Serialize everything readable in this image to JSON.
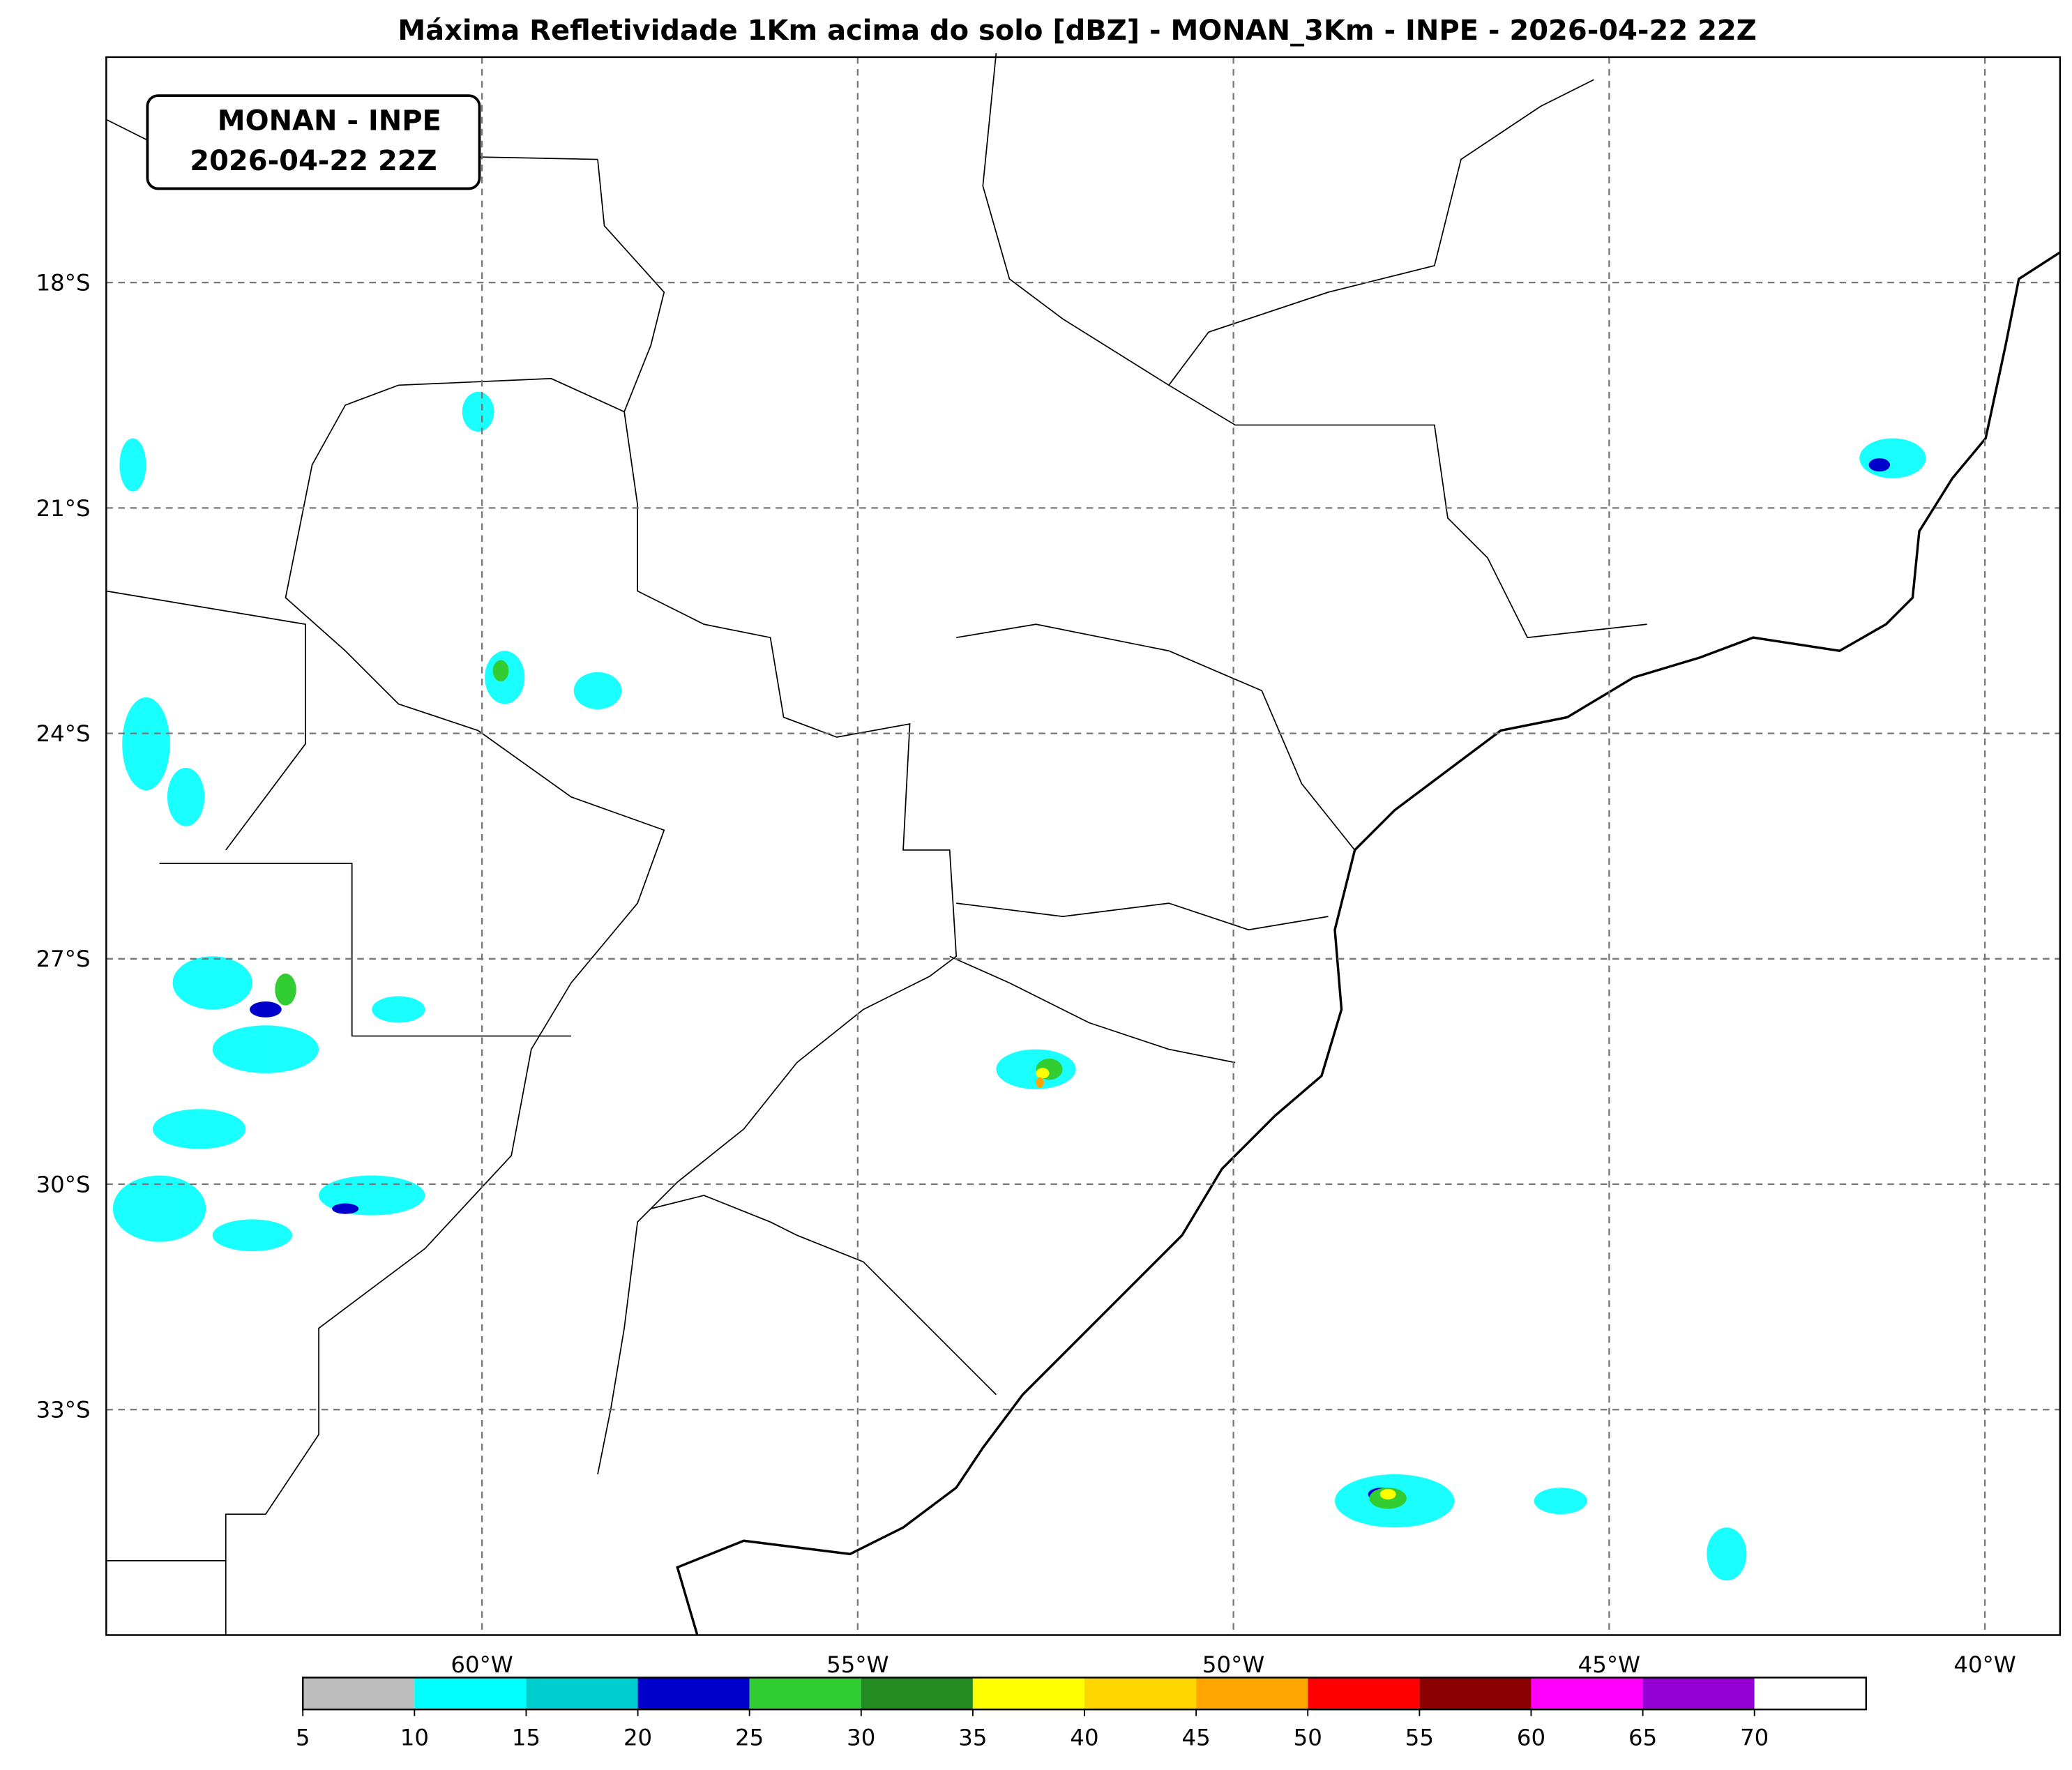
{
  "title": "Máxima Refletividade 1Km acima do solo [dBZ] - MONAN_3Km - INPE - 2026-04-22 22Z",
  "label_box": [
    "MONAN - INPE",
    "2026-04-22 22Z"
  ],
  "map": {
    "lon_range": [
      -65,
      -39
    ],
    "lat_range": [
      -36,
      -15
    ],
    "lon_ticks": [
      {
        "value": -60,
        "label": "60°W"
      },
      {
        "value": -55,
        "label": "55°W"
      },
      {
        "value": -50,
        "label": "50°W"
      },
      {
        "value": -45,
        "label": "45°W"
      },
      {
        "value": -40,
        "label": "40°W"
      }
    ],
    "lat_ticks": [
      {
        "value": -18,
        "label": "18°S"
      },
      {
        "value": -21,
        "label": "21°S"
      },
      {
        "value": -24,
        "label": "24°S"
      },
      {
        "value": -27,
        "label": "27°S"
      },
      {
        "value": -30,
        "label": "30°S"
      },
      {
        "value": -33,
        "label": "33°S"
      }
    ]
  },
  "colorbar": {
    "ticks": [
      5,
      10,
      15,
      20,
      25,
      30,
      35,
      40,
      45,
      50,
      55,
      60,
      65,
      70
    ],
    "colors": [
      "#bebebe",
      "#00ffff",
      "#00cdcd",
      "#0000cd",
      "#32cd32",
      "#228b22",
      "#ffff00",
      "#ffd700",
      "#ffa500",
      "#ff0000",
      "#8b0000",
      "#ff00ff",
      "#9400d3",
      "#ffffff"
    ]
  }
}
